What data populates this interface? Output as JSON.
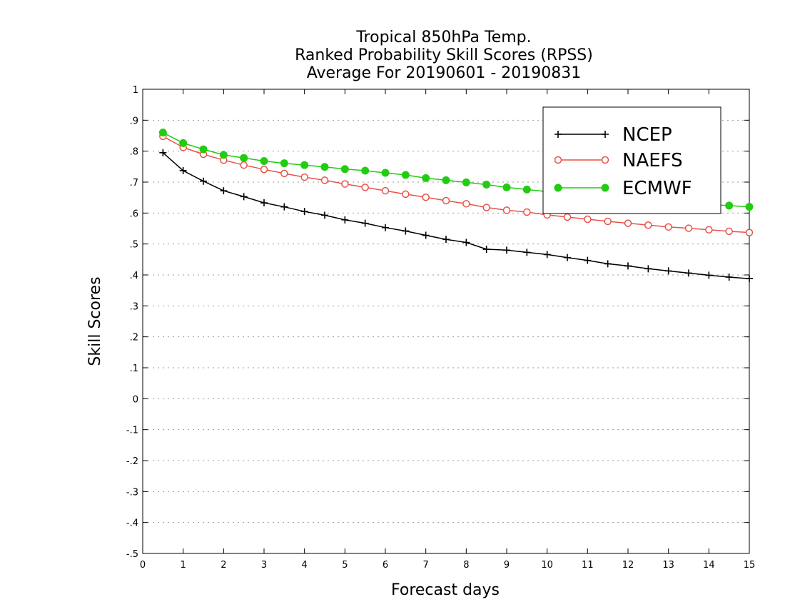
{
  "chart_data": {
    "type": "line",
    "title": [
      "Tropical 850hPa Temp.",
      "Ranked Probability Skill Scores (RPSS)",
      "Average For 20190601 - 20190831"
    ],
    "xlabel": "Forecast days",
    "ylabel": "Skill Scores",
    "xlim": [
      0,
      15
    ],
    "ylim": [
      -0.5,
      1
    ],
    "xticks": [
      0,
      1,
      2,
      3,
      4,
      5,
      6,
      7,
      8,
      9,
      10,
      11,
      12,
      13,
      14,
      15
    ],
    "yticks": [
      -0.5,
      -0.4,
      -0.3,
      -0.2,
      -0.1,
      0,
      0.1,
      0.2,
      0.3,
      0.4,
      0.5,
      0.6,
      0.7,
      0.8,
      0.9,
      1
    ],
    "grid": "horizontal dotted",
    "legend_position": "top-right",
    "x": [
      0.5,
      1,
      1.5,
      2,
      2.5,
      3,
      3.5,
      4,
      4.5,
      5,
      5.5,
      6,
      6.5,
      7,
      7.5,
      8,
      8.5,
      9,
      9.5,
      10,
      10.5,
      11,
      11.5,
      12,
      12.5,
      13,
      13.5,
      14,
      14.5,
      15
    ],
    "series": [
      {
        "name": "NCEP",
        "color": "#000000",
        "marker": "plus",
        "values": [
          0.795,
          0.737,
          0.703,
          0.672,
          0.653,
          0.633,
          0.62,
          0.605,
          0.593,
          0.578,
          0.567,
          0.553,
          0.542,
          0.528,
          0.515,
          0.505,
          0.483,
          0.48,
          0.473,
          0.466,
          0.456,
          0.447,
          0.436,
          0.429,
          0.42,
          0.413,
          0.406,
          0.399,
          0.393,
          0.388
        ]
      },
      {
        "name": "NAEFS",
        "color": "#e8524a",
        "marker": "open-circle",
        "values": [
          0.848,
          0.812,
          0.79,
          0.771,
          0.755,
          0.741,
          0.728,
          0.716,
          0.706,
          0.694,
          0.683,
          0.672,
          0.661,
          0.651,
          0.64,
          0.63,
          0.618,
          0.609,
          0.603,
          0.594,
          0.587,
          0.58,
          0.573,
          0.567,
          0.561,
          0.555,
          0.551,
          0.546,
          0.541,
          0.537
        ]
      },
      {
        "name": "ECMWF",
        "color": "#22cc11",
        "marker": "filled-circle",
        "values": [
          0.86,
          0.826,
          0.806,
          0.788,
          0.778,
          0.768,
          0.761,
          0.755,
          0.749,
          0.742,
          0.737,
          0.73,
          0.723,
          0.713,
          0.706,
          0.699,
          0.692,
          0.683,
          0.676,
          0.669,
          0.664,
          0.658,
          0.652,
          0.647,
          0.641,
          0.636,
          0.631,
          0.627,
          0.624,
          0.62
        ]
      }
    ]
  }
}
